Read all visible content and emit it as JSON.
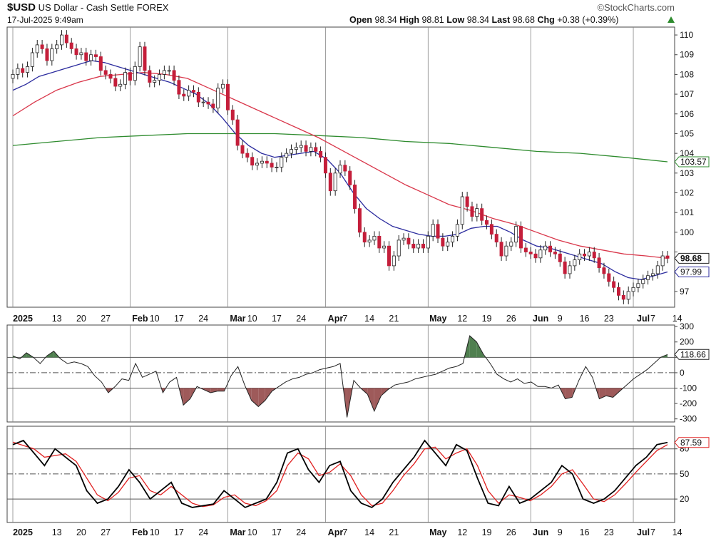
{
  "header": {
    "symbol": "$USD",
    "name": "US Dollar - Cash Settle",
    "exchange": "FOREX",
    "watermark": "©StockCharts.com",
    "datetime": "17-Jul-2025 9:49am",
    "open_label": "Open",
    "open": "98.34",
    "high_label": "High",
    "high": "98.81",
    "low_label": "Low",
    "low": "98.34",
    "last_label": "Last",
    "last": "98.68",
    "chg_label": "Chg",
    "chg": "+0.38 (+0.39%)",
    "up_arrow_icon": "up-triangle-icon"
  },
  "colors": {
    "up_candle": "#ffffff",
    "down_candle": "#c41e3a",
    "ma_short": "#2b2b9e",
    "ma_mid": "#d9364a",
    "ma_long": "#2e8b2e",
    "cci_pos_fill": "#4f7f4f",
    "cci_neg_fill": "#9e5a5a",
    "stoch_k": "#000000",
    "stoch_d": "#e02020"
  },
  "chart_data": [
    {
      "type": "candlestick",
      "y_axis_position": "right",
      "ylim": [
        96.2,
        110.4
      ],
      "y_ticks": [
        97,
        98,
        99,
        100,
        101,
        102,
        103,
        104,
        105,
        106,
        107,
        108,
        109,
        110
      ],
      "y_tick_labels": [
        "97",
        "",
        "",
        "100",
        "101",
        "102",
        "103",
        "104",
        "105",
        "106",
        "107",
        "108",
        "109",
        "110"
      ],
      "x_labels": [
        {
          "label": "2025",
          "bold": true,
          "day": 0
        },
        {
          "label": "13",
          "day": 9
        },
        {
          "label": "20",
          "day": 14
        },
        {
          "label": "27",
          "day": 19
        },
        {
          "label": "Feb",
          "bold": true,
          "day": 24
        },
        {
          "label": "10",
          "day": 29
        },
        {
          "label": "17",
          "day": 34
        },
        {
          "label": "24",
          "day": 39
        },
        {
          "label": "Mar",
          "bold": true,
          "day": 44
        },
        {
          "label": "10",
          "day": 49
        },
        {
          "label": "17",
          "day": 54
        },
        {
          "label": "24",
          "day": 59
        },
        {
          "label": "Apr",
          "bold": true,
          "day": 64
        },
        {
          "label": "7",
          "day": 68
        },
        {
          "label": "14",
          "day": 73
        },
        {
          "label": "21",
          "day": 78
        },
        {
          "label": "May",
          "bold": true,
          "day": 85
        },
        {
          "label": "12",
          "day": 92
        },
        {
          "label": "19",
          "day": 97
        },
        {
          "label": "26",
          "day": 102
        },
        {
          "label": "Jun",
          "bold": true,
          "day": 106
        },
        {
          "label": "9",
          "day": 112
        },
        {
          "label": "16",
          "day": 117
        },
        {
          "label": "23",
          "day": 122
        },
        {
          "label": "Jul",
          "bold": true,
          "day": 127
        },
        {
          "label": "7",
          "day": 131
        },
        {
          "label": "14",
          "day": 136
        }
      ],
      "closes": [
        108.0,
        108.3,
        108.1,
        108.4,
        109.1,
        109.5,
        109.3,
        108.7,
        109.3,
        109.5,
        110.0,
        109.6,
        109.3,
        109.0,
        109.1,
        108.7,
        109.0,
        108.9,
        108.2,
        108.0,
        107.8,
        107.4,
        107.5,
        108.1,
        107.7,
        108.4,
        109.4,
        108.2,
        107.6,
        107.7,
        108.0,
        108.2,
        108.2,
        107.7,
        107.0,
        106.9,
        107.2,
        107.1,
        106.6,
        106.6,
        106.5,
        106.3,
        107.3,
        107.5,
        106.2,
        105.7,
        104.4,
        104.0,
        103.8,
        103.4,
        103.5,
        103.6,
        103.5,
        103.3,
        103.3,
        103.8,
        104.0,
        104.2,
        104.3,
        104.4,
        104.1,
        104.3,
        104.1,
        103.8,
        103.0,
        102.1,
        103.0,
        103.4,
        103.1,
        102.4,
        101.2,
        100.0,
        99.5,
        99.6,
        99.8,
        99.2,
        99.3,
        98.3,
        98.8,
        99.6,
        99.7,
        99.4,
        99.2,
        99.4,
        99.2,
        99.8,
        100.4,
        99.7,
        99.3,
        99.5,
        99.8,
        100.4,
        101.8,
        101.3,
        100.8,
        101.2,
        100.6,
        100.4,
        99.9,
        99.5,
        98.8,
        99.3,
        99.5,
        100.3,
        99.2,
        99.0,
        98.9,
        98.7,
        99.1,
        99.3,
        99.0,
        98.9,
        98.5,
        97.9,
        98.3,
        98.6,
        98.9,
        98.8,
        99.0,
        98.7,
        98.2,
        97.9,
        97.5,
        97.2,
        96.8,
        96.6,
        97.0,
        97.2,
        97.4,
        97.6,
        97.8,
        97.9,
        98.3,
        98.8,
        98.68
      ],
      "ma_short_series": [
        107.2,
        107.5,
        107.9,
        108.1,
        108.3,
        108.5,
        108.7,
        108.6,
        108.4,
        108.2,
        108.0,
        107.8,
        107.6,
        107.3,
        107.0,
        106.5,
        105.8,
        105.0,
        104.4,
        104.0,
        103.8,
        103.9,
        104.0,
        104.1,
        103.7,
        103.0,
        102.0,
        101.2,
        100.7,
        100.3,
        100.1,
        99.9,
        99.8,
        99.8,
        99.9,
        100.2,
        100.3,
        100.3,
        100.0,
        99.6,
        99.3,
        99.2,
        99.0,
        98.8,
        98.6,
        98.4,
        98.0,
        97.7,
        97.6,
        97.8,
        97.99
      ],
      "ma_mid_series": [
        105.9,
        106.6,
        107.2,
        107.6,
        107.9,
        108.0,
        108.1,
        108.0,
        107.8,
        107.3,
        106.8,
        106.3,
        105.8,
        105.3,
        104.8,
        104.2,
        103.6,
        103.0,
        102.4,
        101.9,
        101.4,
        101.1,
        100.7,
        100.4,
        100.0,
        99.6,
        99.3,
        99.1,
        98.9,
        98.8,
        98.68
      ],
      "ma_long_series": [
        104.4,
        104.6,
        104.8,
        104.9,
        105.0,
        105.0,
        105.0,
        104.9,
        104.8,
        104.6,
        104.5,
        104.3,
        104.1,
        104.0,
        103.8,
        103.57
      ],
      "ma_short_label": "97.99",
      "ma_long_label": "103.57",
      "last_label": "98.68"
    },
    {
      "type": "area",
      "name": "CCI",
      "y_axis_position": "right",
      "ylim": [
        -320,
        310
      ],
      "y_ticks": [
        300,
        200,
        100,
        0,
        -100,
        -200,
        -300
      ],
      "y_tick_labels": [
        "300",
        "200",
        "",
        "0",
        "-100",
        "-200",
        "-300"
      ],
      "reference_lines": [
        100,
        0,
        -100
      ],
      "values": [
        110,
        90,
        130,
        100,
        60,
        110,
        140,
        90,
        60,
        70,
        60,
        40,
        -20,
        -60,
        -130,
        -90,
        -40,
        -50,
        60,
        -30,
        -10,
        10,
        -130,
        -60,
        -30,
        -210,
        -170,
        -90,
        -110,
        -130,
        -120,
        -120,
        -20,
        40,
        -80,
        -180,
        -220,
        -180,
        -120,
        -90,
        -60,
        -40,
        -30,
        -10,
        0,
        20,
        30,
        40,
        60,
        -290,
        -50,
        -100,
        -140,
        -250,
        -150,
        -110,
        -80,
        -70,
        -60,
        -40,
        -30,
        -20,
        -10,
        10,
        30,
        40,
        60,
        240,
        200,
        120,
        60,
        -10,
        -40,
        -60,
        -40,
        -70,
        -60,
        -90,
        -90,
        -100,
        -80,
        -170,
        -160,
        -50,
        40,
        -30,
        -170,
        -150,
        -160,
        -120,
        -80,
        -40,
        -10,
        20,
        60,
        100,
        118.66
      ],
      "last_label": "118.66"
    },
    {
      "type": "line",
      "name": "Stochastic",
      "y_axis_position": "right",
      "ylim": [
        -8,
        107
      ],
      "y_ticks": [
        80,
        50,
        20
      ],
      "y_tick_labels": [
        "80",
        "50",
        "20"
      ],
      "reference_lines": [
        80,
        50,
        20
      ],
      "series": [
        {
          "values": [
            85,
            90,
            75,
            60,
            80,
            70,
            60,
            30,
            15,
            20,
            35,
            55,
            40,
            20,
            30,
            40,
            15,
            10,
            12,
            14,
            30,
            20,
            10,
            15,
            20,
            40,
            75,
            80,
            55,
            40,
            60,
            65,
            30,
            15,
            10,
            20,
            40,
            55,
            70,
            90,
            75,
            60,
            85,
            78,
            45,
            15,
            12,
            35,
            15,
            20,
            30,
            40,
            60,
            50,
            20,
            15,
            20,
            30,
            45,
            60,
            70,
            85,
            87.59
          ]
        },
        {
          "values": [
            88,
            84,
            80,
            70,
            72,
            74,
            65,
            45,
            25,
            18,
            28,
            45,
            48,
            30,
            25,
            35,
            25,
            15,
            11,
            13,
            22,
            25,
            15,
            12,
            18,
            30,
            60,
            75,
            68,
            48,
            52,
            62,
            48,
            25,
            12,
            15,
            30,
            48,
            62,
            80,
            82,
            68,
            75,
            80,
            60,
            30,
            15,
            25,
            22,
            18,
            25,
            35,
            50,
            55,
            38,
            20,
            17,
            25,
            38,
            52,
            65,
            78,
            85
          ]
        }
      ],
      "last_label": "87.59"
    }
  ]
}
